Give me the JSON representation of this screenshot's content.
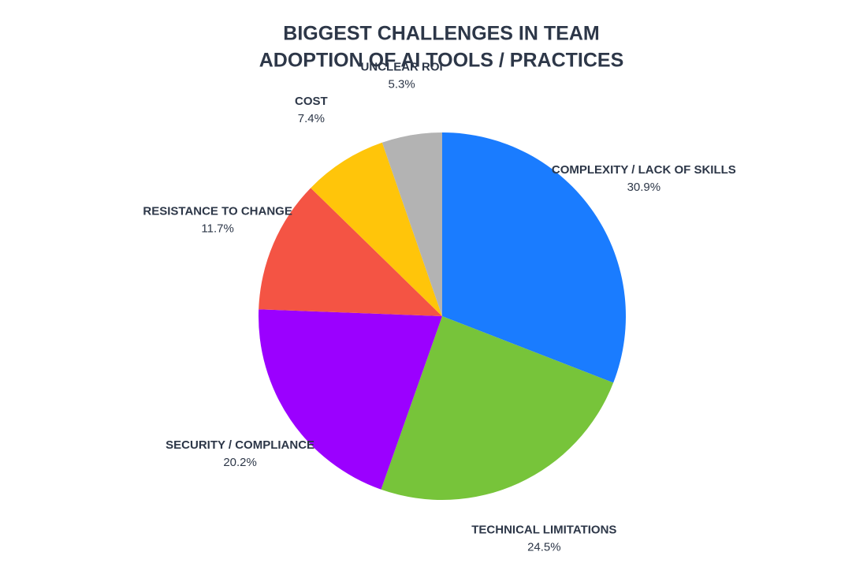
{
  "chart_data": {
    "type": "pie",
    "title": [
      "BIGGEST CHALLENGES IN TEAM",
      "ADOPTION OF AI TOOLS / PRACTICES"
    ],
    "categories": [
      "COMPLEXITY / LACK OF SKILLS",
      "TECHNICAL LIMITATIONS",
      "SECURITY / COMPLIANCE",
      "RESISTANCE TO CHANGE",
      "COST",
      "UNCLEAR ROI"
    ],
    "values": [
      30.9,
      24.5,
      20.2,
      11.7,
      7.4,
      5.3
    ],
    "value_labels": [
      "30.9%",
      "24.5%",
      "20.2%",
      "11.7%",
      "7.4%",
      "5.3%"
    ],
    "colors": [
      "#1a7cff",
      "#77c43a",
      "#9b00ff",
      "#f45444",
      "#ffc50a",
      "#b3b3b3"
    ]
  }
}
